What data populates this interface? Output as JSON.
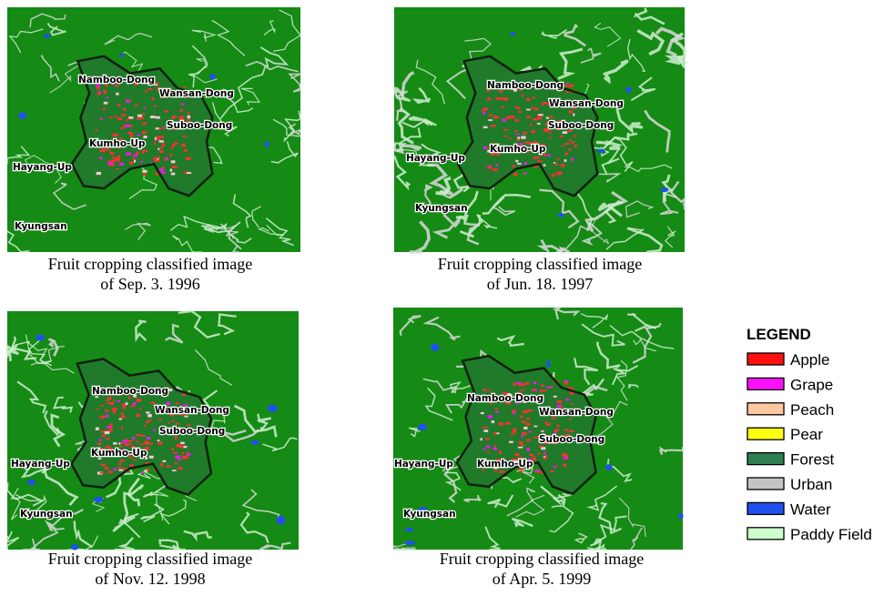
{
  "panels": [
    {
      "caption": [
        "Fruit cropping classified image",
        "of Sep. 3. 1996"
      ],
      "labels": [
        "Namboo-Dong",
        "Wansan-Dong",
        "Suboo-Dong",
        "Kumho-Up",
        "Hayang-Up",
        "Kyungsan"
      ]
    },
    {
      "caption": [
        "Fruit cropping classified image",
        "of Jun. 18. 1997"
      ],
      "labels": [
        "Namboo-Dong",
        "Wansan-Dong",
        "Suboo-Dong",
        "Kumho-Up",
        "Hayang-Up",
        "Kyungsan"
      ]
    },
    {
      "caption": [
        "Fruit cropping classified image",
        "of Nov. 12. 1998"
      ],
      "labels": [
        "Namboo-Dong",
        "Wansan-Dong",
        "Suboo-Dong",
        "Kumho-Up",
        "Hayang-Up",
        "Kyungsan"
      ]
    },
    {
      "caption": [
        "Fruit cropping classified image",
        "of Apr. 5. 1999"
      ],
      "labels": [
        "Namboo-Dong",
        "Wansan-Dong",
        "Suboo-Dong",
        "Kumho-Up",
        "Hayang-Up",
        "Kyungsan"
      ]
    }
  ],
  "legend": {
    "title": "LEGEND",
    "items": [
      {
        "name": "Apple",
        "color": "#ff1010"
      },
      {
        "name": "Grape",
        "color": "#ff10ff"
      },
      {
        "name": "Peach",
        "color": "#ffc8a0"
      },
      {
        "name": "Pear",
        "color": "#ffff10"
      },
      {
        "name": "Forest",
        "color": "#2e8050"
      },
      {
        "name": "Urban",
        "color": "#c4c4c4"
      },
      {
        "name": "Water",
        "color": "#2050f0"
      },
      {
        "name": "Paddy Field",
        "color": "#ccffcc"
      }
    ]
  }
}
